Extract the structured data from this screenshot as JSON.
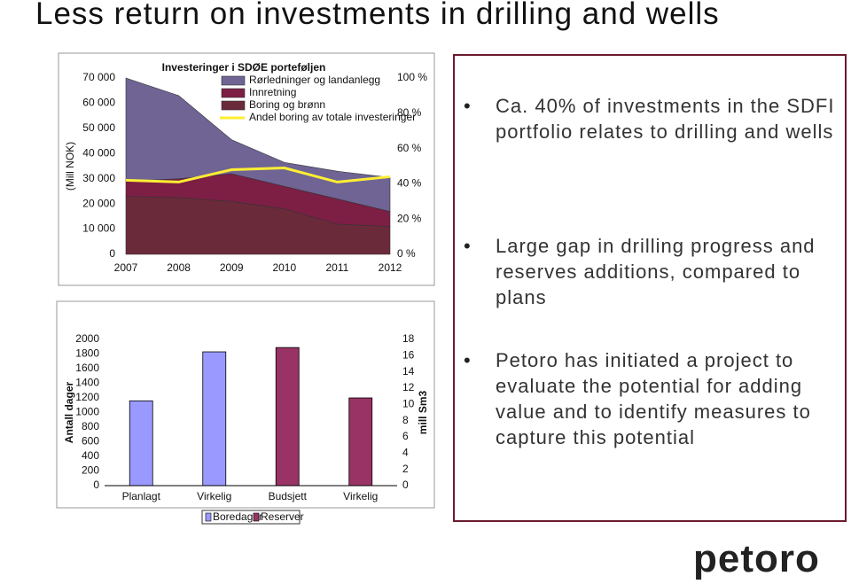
{
  "title": "Less return on investments in drilling and wells",
  "chart_data": [
    {
      "type": "area",
      "title": "Investeringer i SDØE porteføljen",
      "y_label": "(Mill NOK)",
      "categories": [
        "2007",
        "2008",
        "2009",
        "2010",
        "2011",
        "2012"
      ],
      "series": [
        {
          "name": "Rørledninger og landanlegg",
          "color": "#6f6494",
          "values": [
            41000,
            33000,
            13500,
            9500,
            11000,
            13500
          ]
        },
        {
          "name": "Innretning",
          "color": "#7d1e45",
          "values": [
            6000,
            7500,
            11000,
            9000,
            10000,
            6000
          ]
        },
        {
          "name": "Boring og brønn",
          "color": "#6b2a3a",
          "values": [
            23000,
            22500,
            21000,
            18000,
            12000,
            11000
          ]
        },
        {
          "name": "Andel boring av totale investeringer",
          "type": "line",
          "axis": "y2",
          "color": "#ffee33",
          "values": [
            42,
            41,
            48,
            49,
            41,
            44
          ]
        }
      ],
      "ylim": [
        0,
        70000
      ],
      "yticks": [
        0,
        {
          "value": 10000,
          "label": "10 000"
        },
        {
          "value": 20000,
          "label": "20 000"
        },
        {
          "value": 30000,
          "label": "30 000"
        },
        {
          "value": 40000,
          "label": "40 000"
        },
        {
          "value": 50000,
          "label": "50 000"
        },
        {
          "value": 60000,
          "label": "60 000"
        },
        {
          "value": 70000,
          "label": "70 000"
        }
      ],
      "y2lim": [
        0,
        100
      ],
      "y2ticks": [
        {
          "value": 0,
          "label": "0 %"
        },
        {
          "value": 20,
          "label": "20 %"
        },
        {
          "value": 40,
          "label": "40 %"
        },
        {
          "value": 60,
          "label": "60 %"
        },
        {
          "value": 80,
          "label": "80 %"
        },
        {
          "value": 100,
          "label": "100 %"
        }
      ]
    },
    {
      "type": "bar",
      "y_label": "Antall dager",
      "y2_label": "mill Sm3",
      "categories": [
        "Planlagt",
        "Virkelig",
        "Budsjett",
        "Virkelig"
      ],
      "series": [
        {
          "name": "Boredager",
          "color": "#9999ff",
          "values": [
            1160,
            1830,
            null,
            null
          ]
        },
        {
          "name": "Reserver",
          "color": "#993366",
          "axis": "y2",
          "values": [
            null,
            null,
            17,
            10.8
          ]
        }
      ],
      "ylim": [
        0,
        2000
      ],
      "yticks": [
        0,
        200,
        400,
        600,
        800,
        1000,
        1200,
        1400,
        1600,
        1800,
        2000
      ],
      "y2lim": [
        0,
        18
      ],
      "y2ticks": [
        0,
        2,
        4,
        6,
        8,
        10,
        12,
        14,
        16,
        18
      ]
    }
  ],
  "bullets": [
    "Ca. 40% of investments in the SDFI portfolio relates to drilling and wells",
    "Large gap in drilling progress and reserves additions, compared to plans",
    "Petoro has initiated a project to evaluate the potential for adding value and to identify measures to capture this potential"
  ],
  "logo": "petoro"
}
